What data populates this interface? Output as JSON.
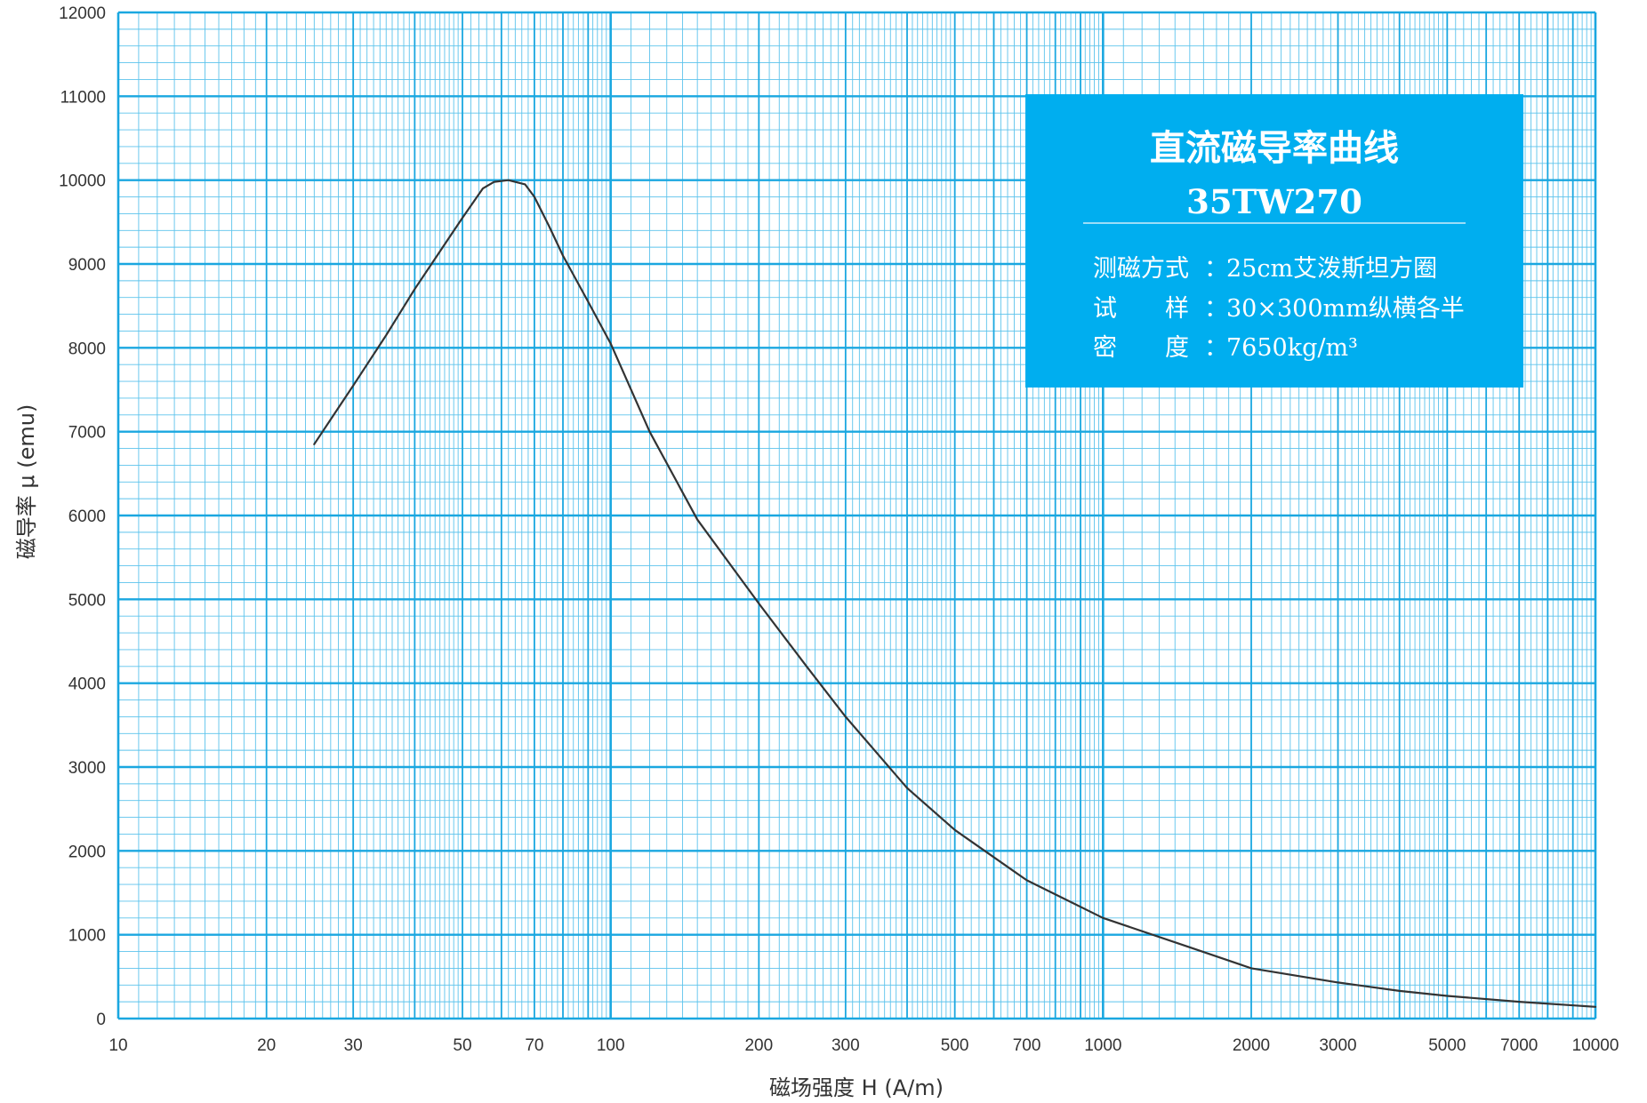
{
  "colors": {
    "grid_major": "#1aa7e0",
    "grid_minor": "#5cc3ec",
    "curve": "#333333",
    "info_box": "#00aeef",
    "info_text": "#ffffff"
  },
  "info": {
    "title": "直流磁导率曲线",
    "grade": "35TW270",
    "lines": [
      {
        "label": "测磁方式",
        "value": "25cm艾泼斯坦方圈"
      },
      {
        "label": "试　　样",
        "value": "30×300mm纵横各半"
      },
      {
        "label": "密　　度",
        "value": "7650kg/m³"
      }
    ]
  },
  "chart_data": {
    "type": "line",
    "title": "直流磁导率曲线",
    "xlabel": "磁场强度 H (A/m)",
    "ylabel": "磁导率 μ (emu)",
    "xscale": "log",
    "xlim": [
      10,
      10000
    ],
    "ylim": [
      0,
      12000
    ],
    "grid": true,
    "xticks": [
      10,
      20,
      30,
      50,
      70,
      100,
      200,
      300,
      500,
      700,
      1000,
      2000,
      3000,
      5000,
      7000,
      10000
    ],
    "xtick_labels": [
      "10",
      "20",
      "30",
      "50",
      "70",
      "100",
      "200",
      "300",
      "500",
      "700",
      "1000",
      "2000",
      "3000",
      "5000",
      "7000",
      "10000"
    ],
    "yticks": [
      0,
      1000,
      2000,
      3000,
      4000,
      5000,
      6000,
      7000,
      8000,
      9000,
      10000,
      11000,
      12000
    ],
    "ytick_labels": [
      "0",
      "1000",
      "2000",
      "3000",
      "4000",
      "5000",
      "6000",
      "7000",
      "8000",
      "9000",
      "10000",
      "11000",
      "12000"
    ],
    "series": [
      {
        "x": [
          25,
          30,
          35,
          40,
          45,
          50,
          55,
          58,
          62,
          67,
          70,
          75,
          80,
          90,
          100,
          120,
          150,
          200,
          250,
          300,
          400,
          500,
          700,
          1000,
          1500,
          2000,
          3000,
          4000,
          5000,
          7000,
          10000
        ],
        "y": [
          6850,
          7550,
          8150,
          8700,
          9150,
          9550,
          9900,
          9980,
          10000,
          9950,
          9800,
          9450,
          9100,
          8550,
          8050,
          7000,
          5950,
          4950,
          4200,
          3600,
          2750,
          2250,
          1650,
          1200,
          850,
          600,
          430,
          330,
          270,
          200,
          140
        ]
      }
    ]
  }
}
